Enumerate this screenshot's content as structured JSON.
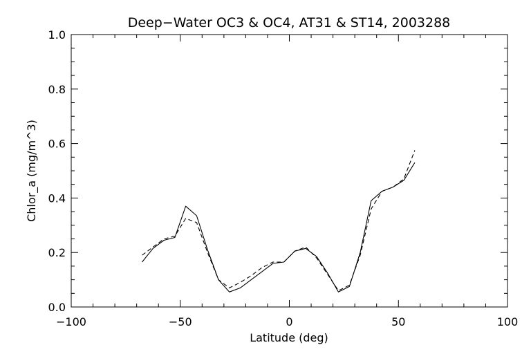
{
  "chart_data": {
    "type": "line",
    "title": "Deep−Water OC3 & OC4, AT31 & ST14, 2003288",
    "xlabel": "Latitude (deg)",
    "ylabel": "Chlor_a (mg/m^3)",
    "xlim": [
      -100,
      100
    ],
    "ylim": [
      0.0,
      1.0
    ],
    "x_ticks": [
      -100,
      -50,
      0,
      50,
      100
    ],
    "x_tick_labels": [
      "−100",
      "−50",
      "0",
      "50",
      "100"
    ],
    "y_ticks": [
      0.0,
      0.2,
      0.4,
      0.6,
      0.8,
      1.0
    ],
    "y_tick_labels": [
      "0.0",
      "0.2",
      "0.4",
      "0.6",
      "0.8",
      "1.0"
    ],
    "grid": false,
    "series": [
      {
        "style": "solid",
        "color": "#000000",
        "x": [
          -67.5,
          -62.5,
          -57.5,
          -52.5,
          -47.5,
          -42.5,
          -37.5,
          -32.5,
          -27.5,
          -22.5,
          -17.5,
          -12.5,
          -7.5,
          -2.5,
          2.5,
          7.5,
          12.5,
          17.5,
          22.5,
          27.5,
          32.5,
          37.5,
          42.5,
          47.5,
          52.5,
          57.5
        ],
        "y": [
          0.165,
          0.215,
          0.245,
          0.255,
          0.37,
          0.335,
          0.21,
          0.1,
          0.055,
          0.07,
          0.1,
          0.13,
          0.16,
          0.165,
          0.205,
          0.215,
          0.185,
          0.125,
          0.055,
          0.075,
          0.2,
          0.39,
          0.425,
          0.44,
          0.465,
          0.53
        ]
      },
      {
        "style": "dashed",
        "color": "#000000",
        "x": [
          -67.5,
          -62.5,
          -57.5,
          -52.5,
          -47.5,
          -42.5,
          -37.5,
          -32.5,
          -27.5,
          -22.5,
          -17.5,
          -12.5,
          -7.5,
          -2.5,
          2.5,
          7.5,
          12.5,
          17.5,
          22.5,
          27.5,
          32.5,
          37.5,
          42.5,
          47.5,
          52.5,
          57.5
        ],
        "y": [
          0.19,
          0.22,
          0.25,
          0.26,
          0.325,
          0.31,
          0.2,
          0.1,
          0.07,
          0.09,
          0.115,
          0.145,
          0.165,
          0.165,
          0.205,
          0.22,
          0.18,
          0.12,
          0.06,
          0.08,
          0.19,
          0.36,
          0.425,
          0.44,
          0.47,
          0.575
        ]
      }
    ]
  }
}
